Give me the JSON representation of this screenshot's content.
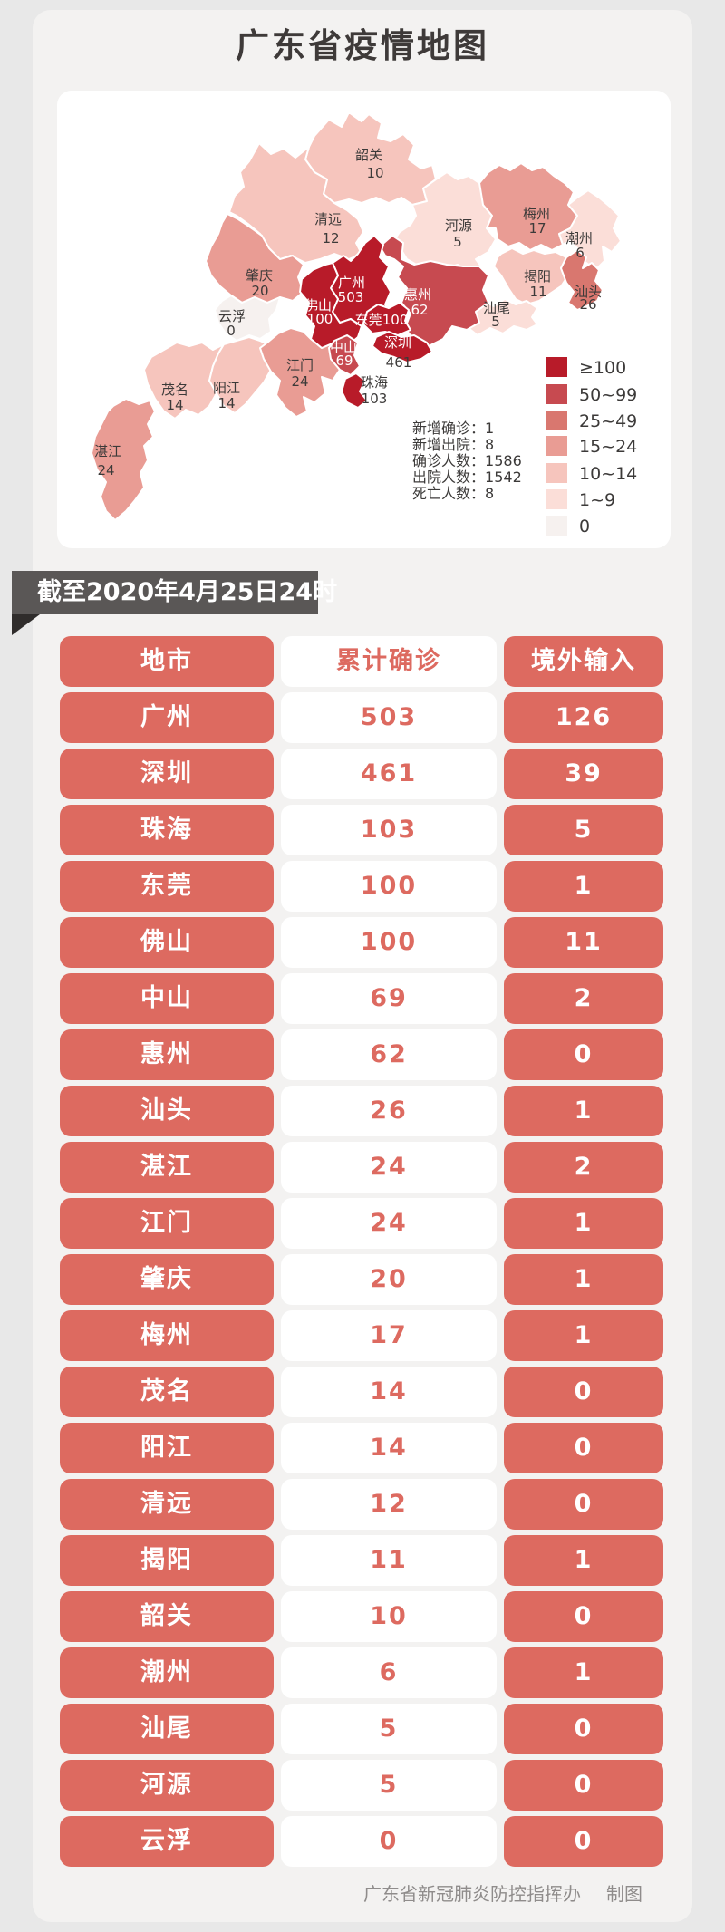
{
  "title": "广东省疫情地图",
  "date_banner": "截至2020年4月25日24时",
  "footer": {
    "maker": "广东省新冠肺炎防控指挥办",
    "label": "制图"
  },
  "colors": {
    "accent_red": "#dd6a60",
    "title_underline": "#e35c55",
    "banner_bg": "#5a5756",
    "banner_fold": "#2f2c2b",
    "page_bg": "#e8e8e8",
    "panel_bg": "#f3f2f1",
    "card_bg": "#ffffff",
    "map_border": "#ffffff",
    "levels": {
      "l7": "#b81b29",
      "l6": "#c74a50",
      "l5": "#d9776f",
      "l4": "#e99c94",
      "l3": "#f6c5bd",
      "l2": "#fbded8",
      "l1": "#f6f1ef"
    }
  },
  "map": {
    "stats_colon": "：",
    "stats": [
      {
        "label": "新增确诊",
        "value": "1"
      },
      {
        "label": "新增出院",
        "value": "8"
      },
      {
        "label": "确诊人数",
        "value": "1586"
      },
      {
        "label": "出院人数",
        "value": "1542"
      },
      {
        "label": "死亡人数",
        "value": "8"
      }
    ],
    "legend": [
      {
        "label": "≥100",
        "level": "l7"
      },
      {
        "label": "50~99",
        "level": "l6"
      },
      {
        "label": "25~49",
        "level": "l5"
      },
      {
        "label": "15~24",
        "level": "l4"
      },
      {
        "label": "10~14",
        "level": "l3"
      },
      {
        "label": "1~9",
        "level": "l2"
      },
      {
        "label": "0",
        "level": "l1"
      }
    ],
    "cities": [
      {
        "id": "shaoguan",
        "name": "韶关",
        "value": "10",
        "level": "l3"
      },
      {
        "id": "qingyuan",
        "name": "清远",
        "value": "12",
        "level": "l3"
      },
      {
        "id": "heyuan",
        "name": "河源",
        "value": "5",
        "level": "l2"
      },
      {
        "id": "meizhou",
        "name": "梅州",
        "value": "17",
        "level": "l4"
      },
      {
        "id": "chaozhou",
        "name": "潮州",
        "value": "6",
        "level": "l2"
      },
      {
        "id": "jieyang",
        "name": "揭阳",
        "value": "11",
        "level": "l3"
      },
      {
        "id": "shantou",
        "name": "汕头",
        "value": "26",
        "level": "l5"
      },
      {
        "id": "shanwei",
        "name": "汕尾",
        "value": "5",
        "level": "l2"
      },
      {
        "id": "zhaoqing",
        "name": "肇庆",
        "value": "20",
        "level": "l4"
      },
      {
        "id": "yunfu",
        "name": "云浮",
        "value": "0",
        "level": "l1"
      },
      {
        "id": "maoming",
        "name": "茂名",
        "value": "14",
        "level": "l3"
      },
      {
        "id": "yangjiang",
        "name": "阳江",
        "value": "14",
        "level": "l3"
      },
      {
        "id": "zhanjiang",
        "name": "湛江",
        "value": "24",
        "level": "l4"
      },
      {
        "id": "jiangmen",
        "name": "江门",
        "value": "24",
        "level": "l4"
      },
      {
        "id": "huizhou",
        "name": "惠州",
        "value": "62",
        "level": "l6",
        "white": true
      },
      {
        "id": "guangzhou",
        "name": "广州",
        "value": "503",
        "level": "l7",
        "white": true
      },
      {
        "id": "foshan",
        "name": "佛山",
        "value": "100",
        "level": "l7",
        "white": true
      },
      {
        "id": "dongguan",
        "name": "东莞",
        "value": "100",
        "level": "l7",
        "white": true,
        "inline": true
      },
      {
        "id": "zhongshan",
        "name": "中山",
        "value": "69",
        "level": "l6",
        "white": true
      },
      {
        "id": "zhuhai",
        "name": "珠海",
        "value": "103",
        "level": "l7"
      },
      {
        "id": "shenzhen",
        "name": "深圳",
        "value": "461",
        "level": "l7",
        "white_name_only": true
      }
    ]
  },
  "table": {
    "headers": [
      "地市",
      "累计确诊",
      "境外输入"
    ],
    "rows": [
      [
        "广州",
        "503",
        "126"
      ],
      [
        "深圳",
        "461",
        "39"
      ],
      [
        "珠海",
        "103",
        "5"
      ],
      [
        "东莞",
        "100",
        "1"
      ],
      [
        "佛山",
        "100",
        "11"
      ],
      [
        "中山",
        "69",
        "2"
      ],
      [
        "惠州",
        "62",
        "0"
      ],
      [
        "汕头",
        "26",
        "1"
      ],
      [
        "湛江",
        "24",
        "2"
      ],
      [
        "江门",
        "24",
        "1"
      ],
      [
        "肇庆",
        "20",
        "1"
      ],
      [
        "梅州",
        "17",
        "1"
      ],
      [
        "茂名",
        "14",
        "0"
      ],
      [
        "阳江",
        "14",
        "0"
      ],
      [
        "清远",
        "12",
        "0"
      ],
      [
        "揭阳",
        "11",
        "1"
      ],
      [
        "韶关",
        "10",
        "0"
      ],
      [
        "潮州",
        "6",
        "1"
      ],
      [
        "汕尾",
        "5",
        "0"
      ],
      [
        "河源",
        "5",
        "0"
      ],
      [
        "云浮",
        "0",
        "0"
      ]
    ]
  }
}
